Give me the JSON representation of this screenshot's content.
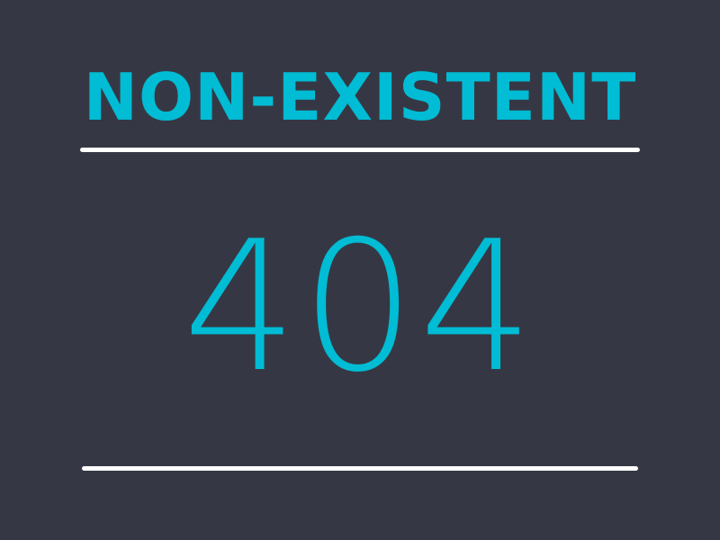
{
  "title": "NON-EXISTENT",
  "code": "404",
  "colors": {
    "background": "#353844",
    "accent": "#00bcd4",
    "rule": "#ffffff"
  }
}
